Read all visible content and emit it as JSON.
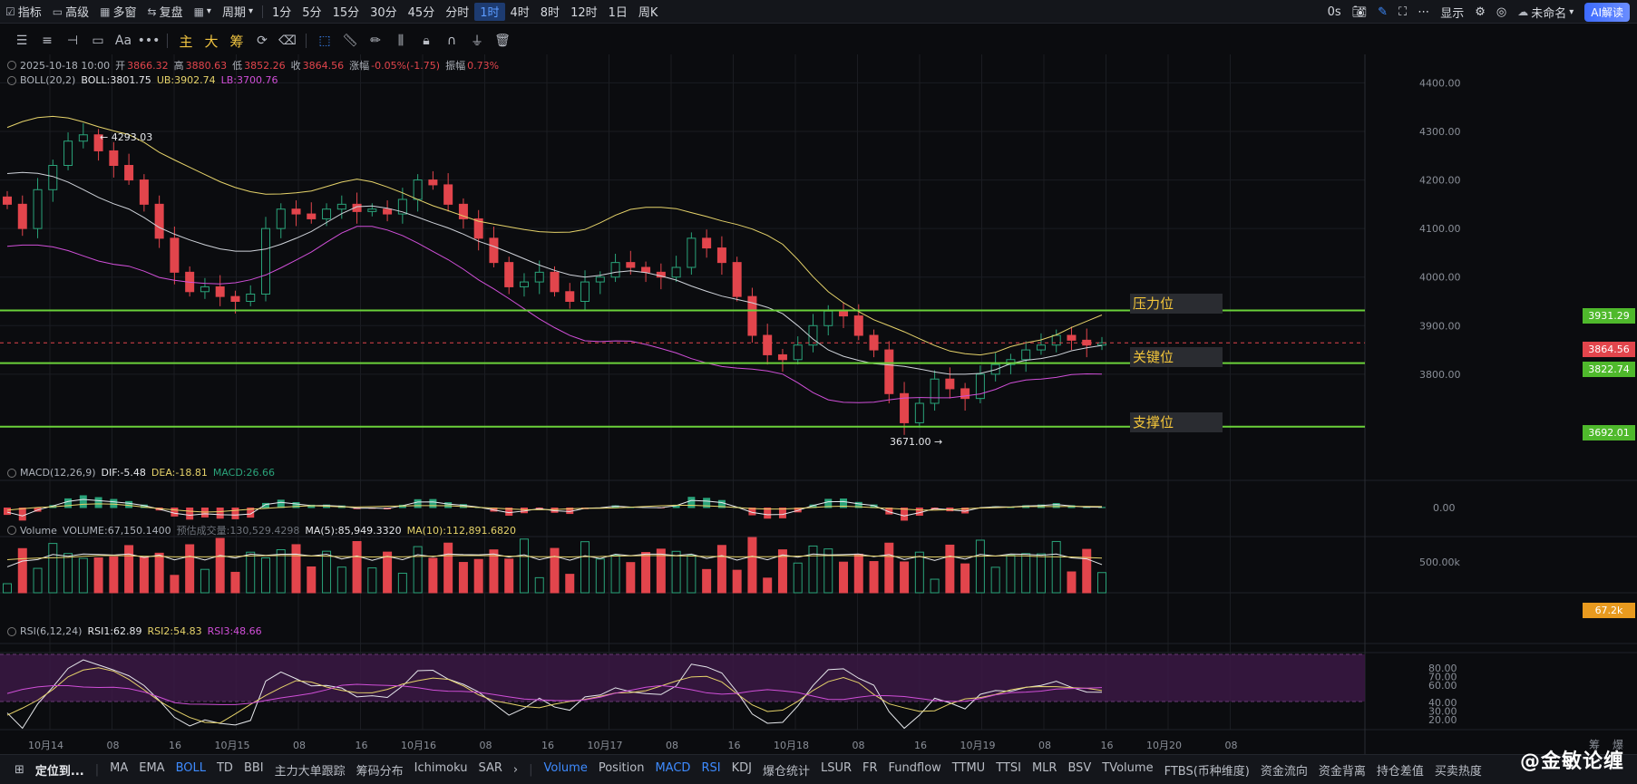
{
  "topbar": {
    "items": [
      {
        "icon": "indicator-icon",
        "glyph": "☑",
        "label": "指标"
      },
      {
        "icon": "pro-icon",
        "glyph": "▭",
        "label": "高级"
      },
      {
        "icon": "multi-window-icon",
        "glyph": "▦",
        "label": "多窗"
      },
      {
        "icon": "replay-icon",
        "glyph": "⇆",
        "label": "复盘"
      }
    ],
    "layout_chevron": "▾",
    "period_label": "周期",
    "periods": [
      "1分",
      "5分",
      "15分",
      "30分",
      "45分",
      "分时",
      "1时",
      "4时",
      "8时",
      "12时",
      "1日",
      "周K"
    ],
    "active_period": "1时",
    "right": {
      "latency": "0s",
      "display_label": "显示",
      "untitled_label": "未命名",
      "ai_label": "AI解读"
    }
  },
  "drawing_toolbar": {
    "text_tool": "Aa",
    "more": "•••",
    "zhu": "主",
    "da": "大",
    "chou": "筹"
  },
  "ohlc": {
    "date": "2025-10-18 10:00",
    "open_label": "开",
    "open": "3866.32",
    "high_label": "高",
    "high": "3880.63",
    "low_label": "低",
    "low": "3852.26",
    "close_label": "收",
    "close": "3864.56",
    "change_label": "涨幅",
    "change": "-0.05%(-1.75)",
    "amp_label": "振幅",
    "amp": "0.73%"
  },
  "boll": {
    "name": "BOLL(20,2)",
    "mid": "BOLL:3801.75",
    "ub": "UB:3902.74",
    "lb": "LB:3700.76"
  },
  "macd": {
    "name": "MACD(12,26,9)",
    "dif": "DIF:-5.48",
    "dea": "DEA:-18.81",
    "macd": "MACD:26.66"
  },
  "volume": {
    "name": "Volume",
    "vol": "VOLUME:67,150.1400",
    "est": "预估成交量:130,529.4298",
    "ma5": "MA(5):85,949.3320",
    "ma10": "MA(10):112,891.6820"
  },
  "rsi": {
    "name": "RSI(6,12,24)",
    "r1": "RSI1:62.89",
    "r2": "RSI2:54.83",
    "r3": "RSI3:48.66"
  },
  "levels": {
    "resistance_label": "压力位",
    "resistance_price": "3931.29",
    "key_label": "关键位",
    "key_price": "3822.74",
    "support_label": "支撑位",
    "support_price": "3692.01",
    "current_price": "3864.56",
    "max_annot": "4293.03",
    "min_annot": "3671.00",
    "volume_tag": "67.2k"
  },
  "axes": {
    "price_ticks": [
      "4400.00",
      "4300.00",
      "4200.00",
      "4100.00",
      "4000.00",
      "3900.00",
      "3800.00"
    ],
    "macd_tick": "0.00",
    "volume_tick": "500.00k",
    "rsi_ticks": [
      "80.00",
      "70.00",
      "60.00",
      "40.00",
      "30.00",
      "20.00"
    ],
    "time_labels": [
      "10月14",
      "08",
      "16",
      "10月15",
      "08",
      "16",
      "10月16",
      "08",
      "16",
      "10月17",
      "08",
      "16",
      "10月18",
      "08",
      "16",
      "10月19",
      "08",
      "16",
      "10月20",
      "08"
    ],
    "corner": [
      "筹",
      "爆"
    ]
  },
  "chart_data": {
    "type": "candlestick",
    "interval": "1h",
    "price_range": [
      3600,
      4440
    ],
    "series_overview": {
      "high_annotation": 4293.03,
      "low_annotation": 3671.0,
      "last_close": 3864.56,
      "boll_mid": 3801.75,
      "boll_ub": 3902.74,
      "boll_lb": 3700.76
    },
    "horizontal_levels": [
      3931.29,
      3822.74,
      3692.01
    ],
    "close_path": [
      4150,
      4100,
      4180,
      4230,
      4280,
      4293,
      4260,
      4230,
      4200,
      4150,
      4080,
      4010,
      3970,
      3980,
      3960,
      3950,
      3965,
      4100,
      4140,
      4130,
      4120,
      4140,
      4150,
      4135,
      4140,
      4130,
      4160,
      4200,
      4190,
      4150,
      4120,
      4080,
      4030,
      3980,
      3990,
      4010,
      3970,
      3950,
      3990,
      4000,
      4030,
      4020,
      4010,
      4000,
      4020,
      4080,
      4060,
      4030,
      3960,
      3880,
      3840,
      3830,
      3860,
      3900,
      3930,
      3920,
      3880,
      3850,
      3760,
      3700,
      3740,
      3790,
      3770,
      3750,
      3800,
      3820,
      3830,
      3850,
      3860,
      3880,
      3870,
      3860,
      3864.56
    ],
    "volume_tick": 500000,
    "rsi_band": [
      30,
      70
    ]
  },
  "bottombar": {
    "lead": "定位到...",
    "items": [
      "MA",
      "EMA",
      "BOLL",
      "TD",
      "BBI",
      "主力大单跟踪",
      "筹码分布",
      "Ichimoku",
      "SAR"
    ],
    "active_main": "BOLL",
    "sub_items": [
      "Volume",
      "Position",
      "MACD",
      "RSI",
      "KDJ",
      "爆仓统计",
      "LSUR",
      "FR",
      "Fundflow",
      "TTMU",
      "TTSI",
      "MLR",
      "BSV",
      "TVolume",
      "FTBS(币种维度)",
      "资金流向",
      "资金背离",
      "持仓差值",
      "买卖热度"
    ],
    "active_sub": [
      "Volume",
      "MACD",
      "RSI"
    ],
    "watermark": "@金敏论缠"
  },
  "colors": {
    "up": "#2aa37a",
    "down": "#e2454c",
    "level": "#6bd13a",
    "ub": "#e6d36a",
    "lb": "#d04fd8",
    "mid": "#cfd3da",
    "rsi_band": "#3b1944"
  }
}
